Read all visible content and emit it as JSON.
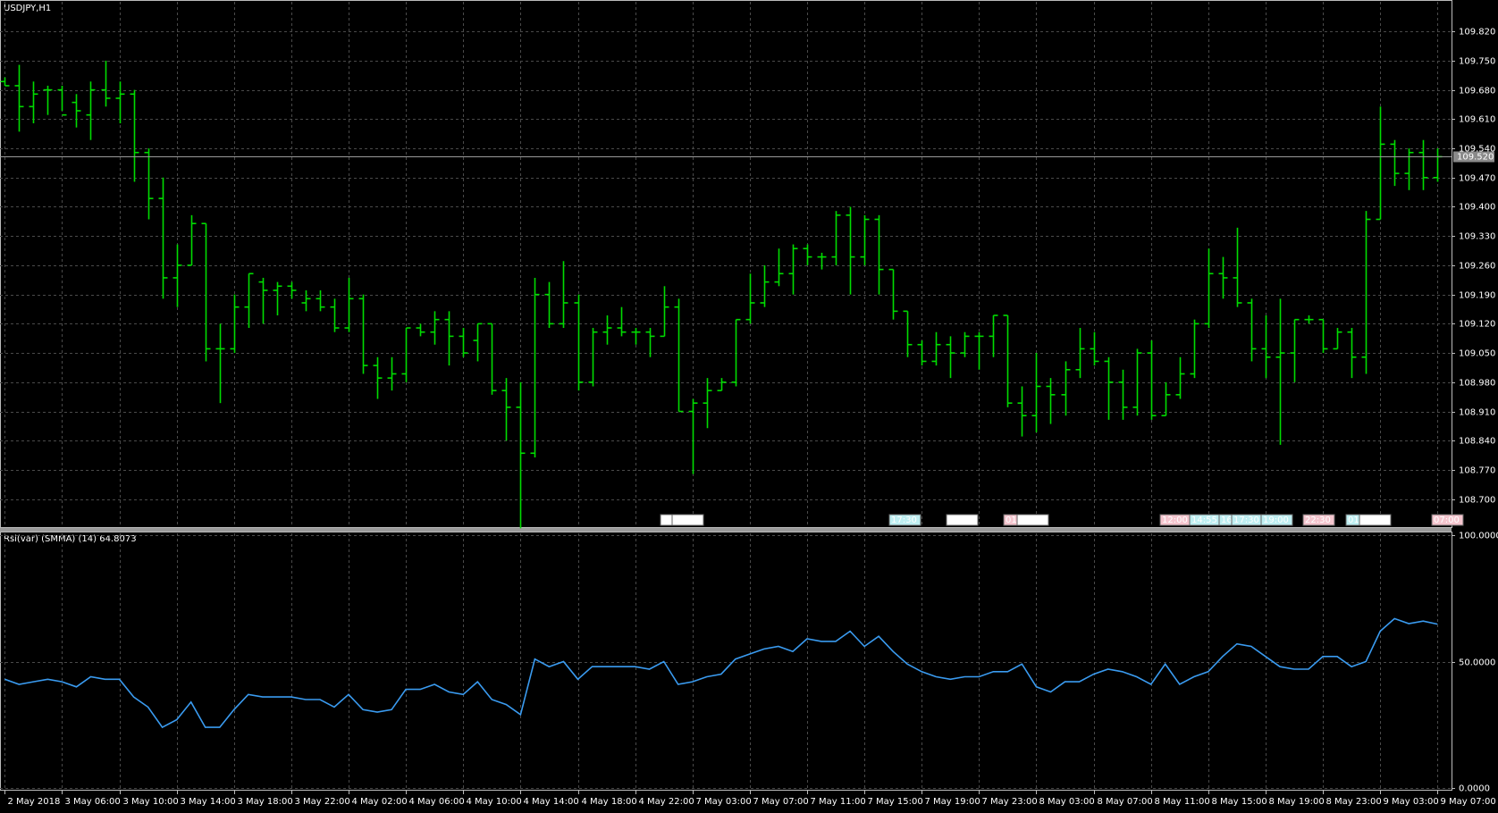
{
  "chart_data": [
    {
      "type": "ohlc",
      "title": "USDJPY,H1",
      "color": "#00dc00",
      "grid": true,
      "categories": [
        "2 May 2018",
        null,
        null,
        null,
        "3 May 06:00",
        null,
        null,
        null,
        "3 May 10:00",
        null,
        null,
        null,
        "3 May 14:00",
        null,
        null,
        null,
        "3 May 18:00",
        null,
        null,
        null,
        "3 May 22:00",
        null,
        null,
        null,
        "4 May 02:00",
        null,
        null,
        null,
        "4 May 06:00",
        null,
        null,
        null,
        "4 May 10:00",
        null,
        null,
        null,
        "4 May 14:00",
        null,
        null,
        null,
        "4 May 18:00",
        null,
        null,
        null,
        "4 May 22:00",
        null,
        null,
        null,
        "7 May 03:00",
        null,
        null,
        null,
        "7 May 07:00",
        null,
        null,
        null,
        "7 May 11:00",
        null,
        null,
        null,
        "7 May 15:00",
        null,
        null,
        null,
        "7 May 19:00",
        null,
        null,
        null,
        "7 May 23:00",
        null,
        null,
        null,
        "8 May 03:00",
        null,
        null,
        null,
        "8 May 07:00",
        null,
        null,
        null,
        "8 May 11:00",
        null,
        null,
        null,
        "8 May 15:00",
        null,
        null,
        null,
        "8 May 19:00",
        null,
        null,
        null,
        "8 May 23:00",
        null,
        null,
        null,
        "9 May 03:00",
        null,
        null,
        null,
        "9 May 07:00"
      ],
      "open": [
        109.7,
        109.69,
        109.64,
        109.68,
        109.68,
        109.65,
        109.62,
        109.68,
        109.66,
        109.67,
        109.53,
        109.42,
        109.23,
        109.26,
        109.36,
        109.06,
        109.06,
        109.16,
        109.22,
        109.2,
        109.21,
        109.17,
        109.18,
        109.16,
        109.11,
        109.18,
        109.02,
        108.99,
        109.0,
        109.11,
        109.1,
        109.13,
        109.09,
        109.08,
        109.12,
        108.96,
        108.92,
        108.81,
        109.19,
        109.12,
        109.17,
        108.98,
        109.1,
        109.11,
        109.1,
        109.1,
        109.09,
        109.16,
        108.91,
        108.93,
        108.96,
        108.98,
        109.13,
        109.17,
        109.22,
        109.24,
        109.3,
        109.28,
        109.28,
        109.38,
        109.28,
        109.37,
        109.25,
        109.15,
        109.07,
        109.03,
        109.07,
        109.05,
        109.09,
        109.09,
        109.14,
        108.93,
        108.9,
        108.97,
        108.95,
        109.01,
        109.06,
        109.03,
        108.98,
        108.92,
        109.05,
        108.9,
        108.95,
        109.0,
        109.12,
        109.24,
        109.23,
        109.17,
        109.06,
        109.04,
        109.05,
        109.13,
        109.13,
        109.06,
        109.1,
        109.04,
        109.37,
        109.55,
        109.48,
        109.53,
        109.47
      ],
      "high": [
        109.71,
        109.74,
        109.7,
        109.69,
        109.69,
        109.67,
        109.7,
        109.75,
        109.7,
        109.68,
        109.54,
        109.47,
        109.31,
        109.38,
        109.36,
        109.12,
        109.19,
        109.24,
        109.23,
        109.22,
        109.22,
        109.2,
        109.2,
        109.18,
        109.23,
        109.19,
        109.04,
        109.04,
        109.11,
        109.12,
        109.15,
        109.15,
        109.11,
        109.12,
        109.12,
        108.99,
        108.98,
        109.23,
        109.22,
        109.27,
        109.19,
        109.11,
        109.14,
        109.16,
        109.11,
        109.11,
        109.21,
        109.18,
        108.94,
        108.99,
        108.99,
        109.13,
        109.24,
        109.26,
        109.3,
        109.31,
        109.31,
        109.29,
        109.39,
        109.4,
        109.38,
        109.38,
        109.25,
        109.15,
        109.08,
        109.1,
        109.09,
        109.1,
        109.1,
        109.14,
        109.14,
        108.97,
        109.05,
        108.99,
        109.03,
        109.11,
        109.1,
        109.04,
        109.01,
        109.06,
        109.08,
        108.98,
        109.04,
        109.13,
        109.3,
        109.28,
        109.35,
        109.18,
        109.14,
        109.18,
        109.13,
        109.14,
        109.13,
        109.11,
        109.11,
        109.39,
        109.64,
        109.56,
        109.54,
        109.56,
        109.54
      ],
      "low": [
        109.69,
        109.58,
        109.6,
        109.62,
        109.63,
        109.59,
        109.56,
        109.64,
        109.6,
        109.46,
        109.37,
        109.18,
        109.16,
        109.26,
        109.03,
        108.93,
        109.05,
        109.11,
        109.12,
        109.14,
        109.18,
        109.15,
        109.15,
        109.1,
        109.1,
        109.0,
        108.94,
        108.96,
        108.98,
        109.09,
        109.07,
        109.02,
        109.04,
        109.03,
        108.95,
        108.84,
        108.63,
        108.8,
        109.11,
        109.11,
        108.96,
        108.97,
        109.07,
        109.09,
        109.07,
        109.04,
        109.09,
        108.91,
        108.76,
        108.87,
        108.96,
        108.97,
        109.12,
        109.16,
        109.21,
        109.19,
        109.26,
        109.25,
        109.26,
        109.19,
        109.26,
        109.19,
        109.13,
        109.04,
        109.02,
        109.02,
        108.99,
        109.04,
        109.01,
        109.04,
        108.92,
        108.85,
        108.86,
        108.88,
        108.9,
        108.99,
        109.02,
        108.89,
        108.89,
        108.9,
        108.89,
        108.9,
        108.94,
        108.99,
        109.11,
        109.18,
        109.16,
        109.03,
        108.99,
        108.83,
        108.98,
        109.12,
        109.05,
        109.06,
        108.99,
        109.0,
        109.37,
        109.45,
        109.44,
        109.44,
        109.46
      ],
      "close": [
        109.69,
        109.64,
        109.67,
        109.68,
        109.62,
        109.63,
        109.68,
        109.66,
        109.67,
        109.53,
        109.42,
        109.23,
        109.26,
        109.36,
        109.06,
        109.06,
        109.16,
        109.24,
        109.2,
        109.21,
        109.2,
        109.18,
        109.16,
        109.11,
        109.18,
        109.02,
        108.99,
        109.0,
        109.11,
        109.1,
        109.13,
        109.09,
        109.05,
        109.12,
        108.96,
        108.92,
        108.81,
        109.19,
        109.12,
        109.17,
        108.98,
        109.1,
        109.11,
        109.1,
        109.1,
        109.09,
        109.16,
        108.91,
        108.93,
        108.96,
        108.98,
        109.13,
        109.17,
        109.22,
        109.24,
        109.3,
        109.28,
        109.28,
        109.38,
        109.28,
        109.37,
        109.25,
        109.15,
        109.07,
        109.03,
        109.07,
        109.05,
        109.09,
        109.09,
        109.14,
        108.93,
        108.9,
        108.97,
        108.95,
        109.01,
        109.06,
        109.03,
        108.98,
        108.92,
        109.05,
        108.9,
        108.95,
        109.0,
        109.12,
        109.24,
        109.23,
        109.17,
        109.06,
        109.04,
        109.05,
        109.13,
        109.13,
        109.06,
        109.1,
        109.04,
        109.37,
        109.55,
        109.48,
        109.53,
        109.47,
        109.52
      ],
      "ylim": [
        108.633,
        109.891
      ],
      "yticks": [
        {
          "value": 108.7,
          "label": "108.700"
        },
        {
          "value": 108.77,
          "label": "108.770"
        },
        {
          "value": 108.84,
          "label": "108.840"
        },
        {
          "value": 108.91,
          "label": "108.910"
        },
        {
          "value": 108.98,
          "label": "108.980"
        },
        {
          "value": 109.05,
          "label": "109.050"
        },
        {
          "value": 109.12,
          "label": "109.120"
        },
        {
          "value": 109.19,
          "label": "109.190"
        },
        {
          "value": 109.26,
          "label": "109.260"
        },
        {
          "value": 109.33,
          "label": "109.330"
        },
        {
          "value": 109.4,
          "label": "109.400"
        },
        {
          "value": 109.47,
          "label": "109.470"
        },
        {
          "value": 109.54,
          "label": "109.540"
        },
        {
          "value": 109.61,
          "label": "109.610"
        },
        {
          "value": 109.68,
          "label": "109.680"
        },
        {
          "value": 109.75,
          "label": "109.750"
        },
        {
          "value": 109.82,
          "label": "109.820"
        }
      ],
      "last_price": {
        "value": 109.52,
        "label": "109.520"
      },
      "events": [
        {
          "label": "01:",
          "color": "#ffffff"
        },
        {
          "label": "02:00",
          "color": "#ffffff"
        },
        {
          "label": "17:30",
          "color": "#bfeff2"
        },
        {
          "label": "21:30",
          "color": "#ffffff"
        },
        {
          "label": "01:",
          "color": "#f5c6cf"
        },
        {
          "label": "02:00",
          "color": "#ffffff"
        },
        {
          "label": "12:00",
          "color": "#f5c6cf"
        },
        {
          "label": "14:55",
          "color": "#bfeff2"
        },
        {
          "label": "16:",
          "color": "#bfeff2"
        },
        {
          "label": "17:30",
          "color": "#bfeff2"
        },
        {
          "label": "19:00",
          "color": "#bfeff2"
        },
        {
          "label": "22:30",
          "color": "#f5c6cf"
        },
        {
          "label": "01:",
          "color": "#bfeff2"
        },
        {
          "label": "02:00",
          "color": "#ffffff"
        },
        {
          "label": "07:00",
          "color": "#f5c6cf"
        }
      ]
    },
    {
      "type": "line",
      "title": "Rsi(var) (SMMA) (14) 64.8073",
      "color": "#3a9bf0",
      "grid": true,
      "values": [
        43,
        41,
        42,
        43,
        42,
        40,
        44,
        43,
        43,
        36,
        32,
        24,
        27,
        34,
        24,
        24,
        31,
        37,
        36,
        36,
        36,
        35,
        35,
        32,
        37,
        31,
        30,
        31,
        39,
        39,
        41,
        38,
        37,
        42,
        35,
        33,
        29,
        51,
        48,
        50,
        43,
        48,
        48,
        48,
        48,
        47,
        50,
        41,
        42,
        44,
        45,
        51,
        53,
        55,
        56,
        54,
        59,
        58,
        58,
        62,
        56,
        60,
        54,
        49,
        46,
        44,
        43,
        44,
        44,
        46,
        46,
        49,
        40,
        38,
        42,
        42,
        45,
        47,
        46,
        44,
        41,
        49,
        41,
        44,
        46,
        52,
        57,
        56,
        52,
        48,
        47,
        47,
        52,
        52,
        48,
        50,
        62,
        67,
        65,
        66,
        64.8073
      ],
      "ylim": [
        0,
        100
      ],
      "yticks": [
        {
          "value": 0,
          "label": "0.0000"
        },
        {
          "value": 50,
          "label": "50.0000"
        },
        {
          "value": 100,
          "label": "100.0000"
        }
      ]
    }
  ]
}
